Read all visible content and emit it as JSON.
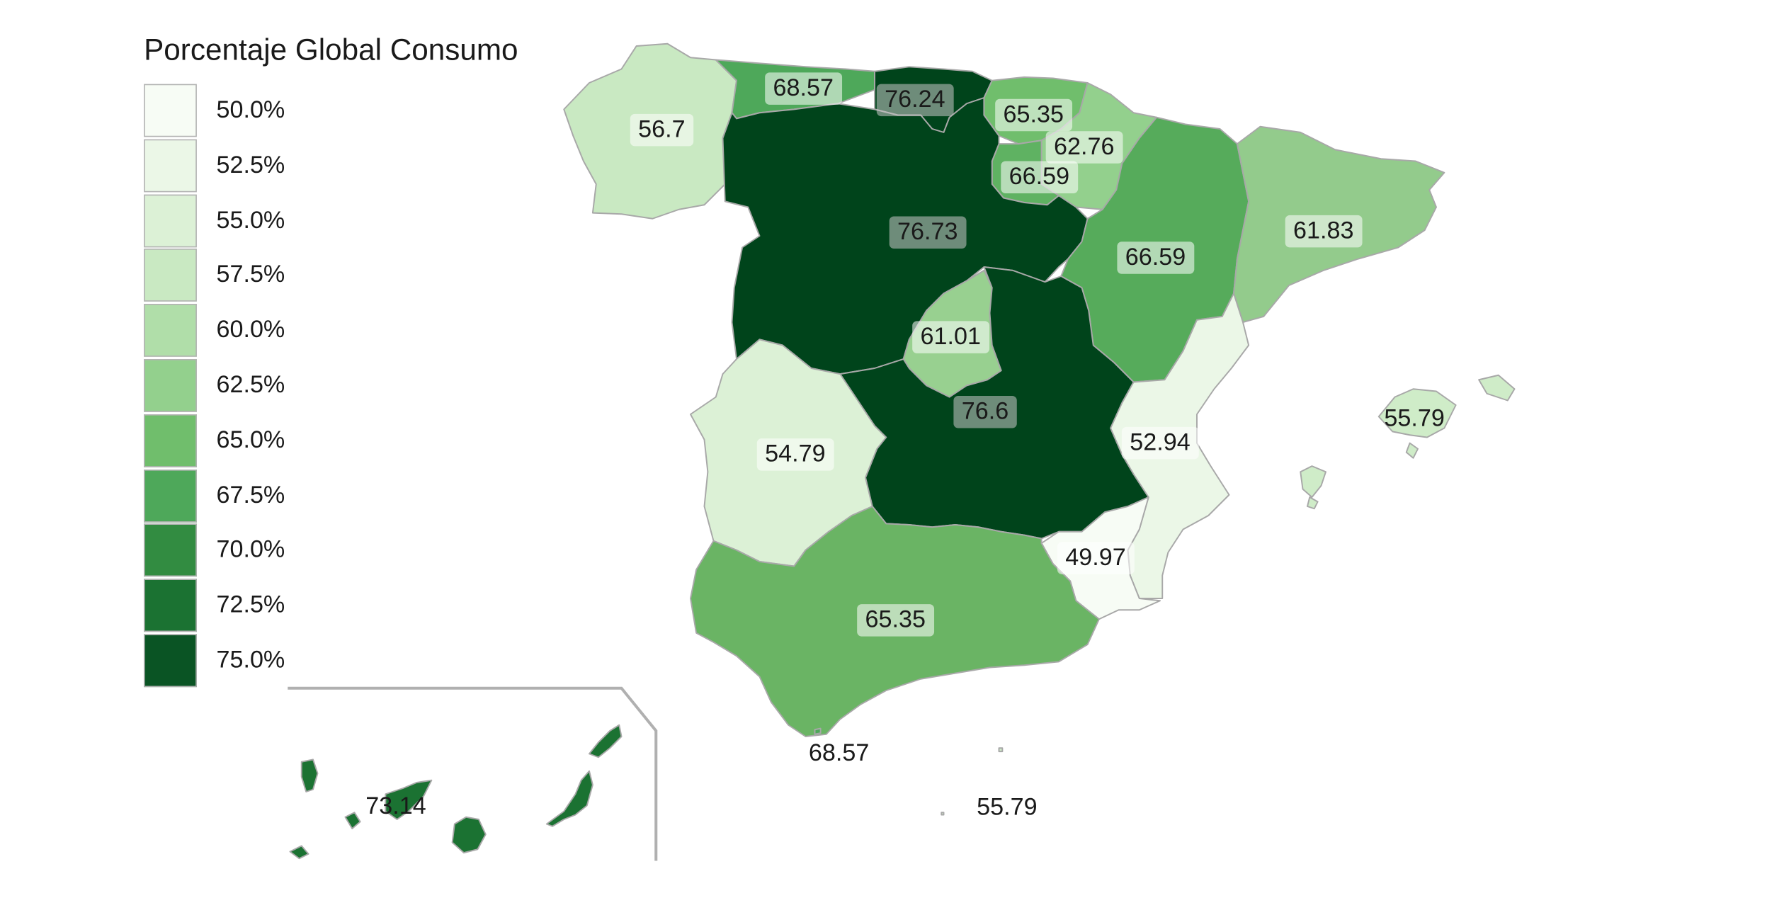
{
  "legend": {
    "title": "Porcentaje Global Consumo",
    "items": [
      {
        "label": "50.0%",
        "color": "#f7fcf5"
      },
      {
        "label": "52.5%",
        "color": "#ebf7e7"
      },
      {
        "label": "55.0%",
        "color": "#dcf1d6"
      },
      {
        "label": "57.5%",
        "color": "#c9e9c2"
      },
      {
        "label": "60.0%",
        "color": "#b0dea9"
      },
      {
        "label": "62.5%",
        "color": "#93d08d"
      },
      {
        "label": "65.0%",
        "color": "#70be6c"
      },
      {
        "label": "67.5%",
        "color": "#4ea85a"
      },
      {
        "label": "70.0%",
        "color": "#328c41"
      },
      {
        "label": "72.5%",
        "color": "#1b7232"
      },
      {
        "label": "75.0%",
        "color": "#0a5424"
      }
    ]
  },
  "regions": [
    {
      "name": "Galicia",
      "value": "56.7",
      "color": "#c9e9c2"
    },
    {
      "name": "Asturias",
      "value": "68.57",
      "color": "#4ea85a"
    },
    {
      "name": "Cantabria",
      "value": "76.24",
      "color": "#00441b"
    },
    {
      "name": "País Vasco",
      "value": "65.35",
      "color": "#70be6c"
    },
    {
      "name": "Navarra",
      "value": "62.76",
      "color": "#93d08d"
    },
    {
      "name": "La Rioja",
      "value": "66.59",
      "color": "#5fb262"
    },
    {
      "name": "Castilla y León",
      "value": "76.73",
      "color": "#00441b"
    },
    {
      "name": "Aragón",
      "value": "66.59",
      "color": "#56ab5b"
    },
    {
      "name": "Cataluña",
      "value": "61.83",
      "color": "#93cb8c"
    },
    {
      "name": "Madrid",
      "value": "61.01",
      "color": "#98d090"
    },
    {
      "name": "Castilla-La Mancha",
      "value": "76.6",
      "color": "#00441b"
    },
    {
      "name": "Extremadura",
      "value": "54.79",
      "color": "#dcf1d6"
    },
    {
      "name": "Comunidad Valenciana",
      "value": "52.94",
      "color": "#ebf7e7"
    },
    {
      "name": "Región de Murcia",
      "value": "49.97",
      "color": "#f7fcf5"
    },
    {
      "name": "Andalucía",
      "value": "65.35",
      "color": "#6ab464"
    },
    {
      "name": "Islas Baleares",
      "value": "55.79",
      "color": "#cfecc8"
    },
    {
      "name": "Canarias",
      "value": "73.14",
      "color": "#1b7232"
    },
    {
      "name": "Ceuta",
      "value": "68.57",
      "color": "#4ea85a"
    },
    {
      "name": "Melilla",
      "value": "55.79",
      "color": "#cfecc8"
    }
  ]
}
